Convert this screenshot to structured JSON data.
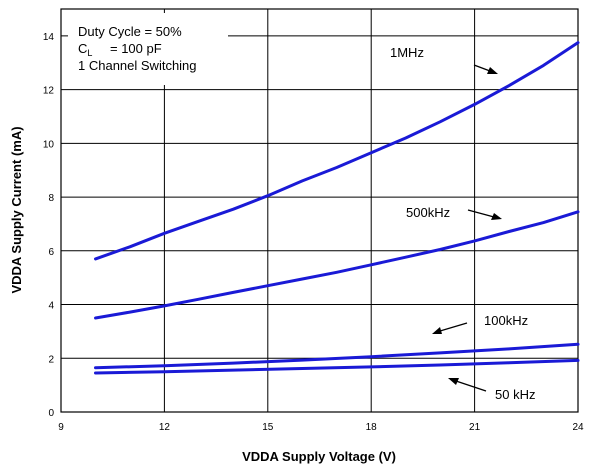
{
  "chart_data": {
    "type": "line",
    "xlabel": "VDDA Supply Voltage (V)",
    "ylabel": "VDDA Supply Current (mA)",
    "xlim": [
      9,
      24
    ],
    "ylim": [
      0,
      15
    ],
    "x_ticks": [
      9,
      12,
      15,
      18,
      21,
      24
    ],
    "y_ticks": [
      0,
      2,
      4,
      6,
      8,
      10,
      12,
      14
    ],
    "grid": true,
    "line_color": "#1a1ad6",
    "conditions": [
      "Duty Cycle = 50%",
      "1 Channel Switching"
    ],
    "load_condition": {
      "symbol": "C",
      "subscript": "L",
      "value": "= 100 pF"
    },
    "series": [
      {
        "name": "1MHz",
        "x": [
          10,
          11,
          12,
          13,
          14,
          15,
          16,
          17,
          18,
          19,
          20,
          21,
          22,
          23,
          24
        ],
        "y": [
          5.7,
          6.15,
          6.65,
          7.1,
          7.55,
          8.05,
          8.6,
          9.1,
          9.65,
          10.2,
          10.8,
          11.45,
          12.15,
          12.9,
          13.75
        ]
      },
      {
        "name": "500kHz",
        "x": [
          10,
          11,
          12,
          13,
          14,
          15,
          16,
          17,
          18,
          19,
          20,
          21,
          22,
          23,
          24
        ],
        "y": [
          3.5,
          3.72,
          3.95,
          4.2,
          4.45,
          4.7,
          4.95,
          5.2,
          5.48,
          5.76,
          6.05,
          6.37,
          6.72,
          7.05,
          7.45
        ]
      },
      {
        "name": "100kHz",
        "x": [
          10,
          12,
          14,
          16,
          18,
          20,
          22,
          24
        ],
        "y": [
          1.65,
          1.72,
          1.82,
          1.93,
          2.06,
          2.2,
          2.35,
          2.52
        ]
      },
      {
        "name": "50 kHz",
        "x": [
          10,
          12,
          14,
          16,
          18,
          20,
          22,
          24
        ],
        "y": [
          1.45,
          1.5,
          1.56,
          1.62,
          1.68,
          1.75,
          1.83,
          1.92
        ]
      }
    ]
  }
}
